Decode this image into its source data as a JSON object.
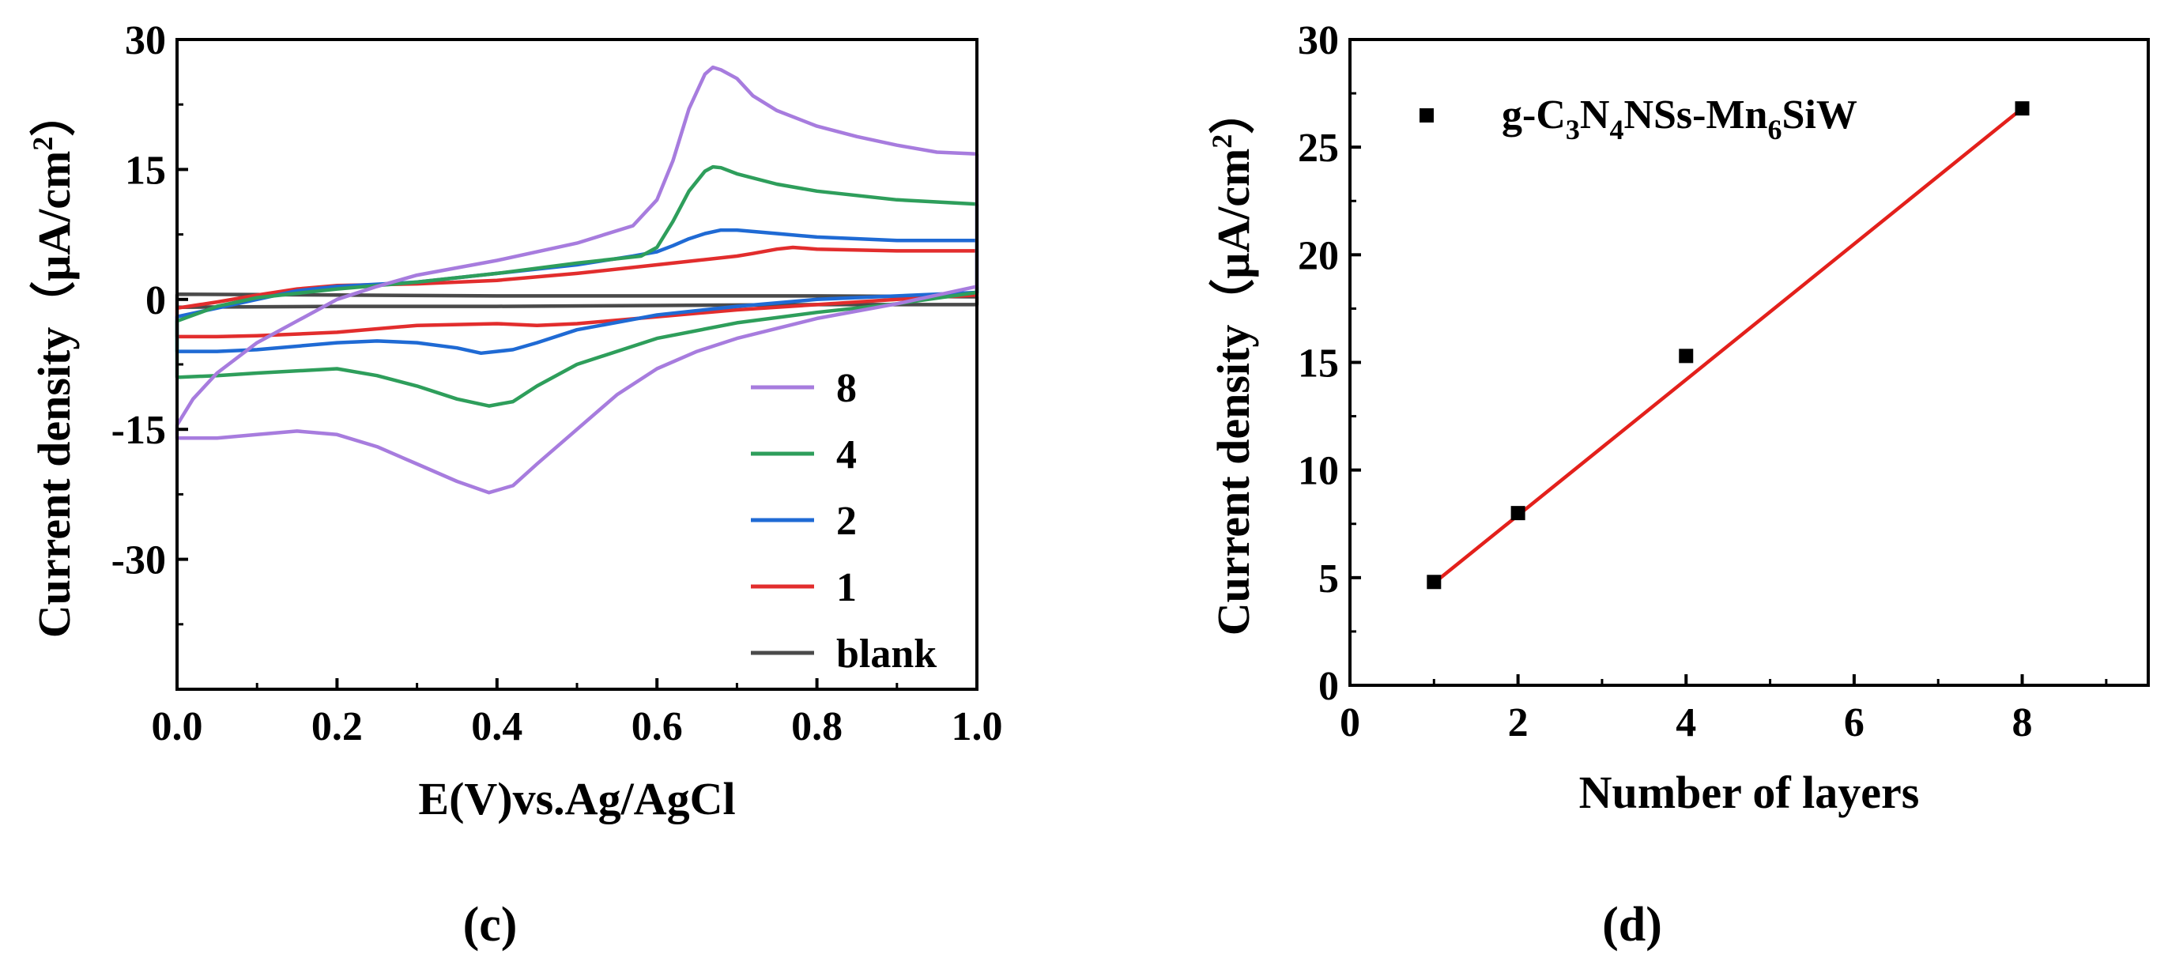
{
  "panels": {
    "c": "(c)",
    "d": "(d)"
  },
  "chart_data": [
    {
      "id": "c",
      "type": "line",
      "title": "",
      "xlabel": "E(V)vs.Ag/AgCl",
      "ylabel": "Current density（μA/cm",
      "ylabel_sup": "2",
      "ylabel_close": "）",
      "xlim": [
        0.0,
        1.0
      ],
      "ylim": [
        -45,
        30
      ],
      "xticks": [
        0.0,
        0.2,
        0.4,
        0.6,
        0.8,
        1.0
      ],
      "xtick_labels": [
        "0.0",
        "0.2",
        "0.4",
        "0.6",
        "0.8",
        "1.0"
      ],
      "yticks": [
        -30,
        -15,
        0,
        15,
        30
      ],
      "ytick_labels": [
        "-30",
        "-15",
        "0",
        "15",
        "30"
      ],
      "legend_position": "bottom-right",
      "series": [
        {
          "name": "8",
          "color": "#a77cde",
          "x": [
            1.0,
            0.95,
            0.9,
            0.85,
            0.8,
            0.75,
            0.72,
            0.7,
            0.68,
            0.67,
            0.66,
            0.64,
            0.62,
            0.6,
            0.57,
            0.5,
            0.4,
            0.3,
            0.25,
            0.2,
            0.15,
            0.1,
            0.05,
            0.02,
            0.0,
            0.0,
            0.05,
            0.1,
            0.15,
            0.2,
            0.25,
            0.3,
            0.35,
            0.39,
            0.42,
            0.45,
            0.5,
            0.55,
            0.6,
            0.65,
            0.7,
            0.8,
            0.9,
            1.0,
            1.0
          ],
          "y": [
            16.8,
            17.0,
            17.8,
            18.8,
            20.0,
            21.8,
            23.5,
            25.5,
            26.5,
            26.8,
            26.0,
            22.0,
            16.0,
            11.5,
            8.5,
            6.5,
            4.5,
            2.8,
            1.5,
            0.0,
            -2.5,
            -5.0,
            -8.5,
            -11.5,
            -14.5,
            -16.0,
            -16.0,
            -15.6,
            -15.2,
            -15.6,
            -17.0,
            -19.0,
            -21.0,
            -22.3,
            -21.5,
            -19.0,
            -15.0,
            -11.0,
            -8.0,
            -6.0,
            -4.5,
            -2.2,
            -0.5,
            1.5,
            16.8
          ]
        },
        {
          "name": "4",
          "color": "#2e9e5b",
          "x": [
            1.0,
            0.9,
            0.8,
            0.75,
            0.7,
            0.68,
            0.67,
            0.66,
            0.64,
            0.62,
            0.6,
            0.58,
            0.5,
            0.4,
            0.3,
            0.2,
            0.1,
            0.05,
            0.0,
            0.0,
            0.05,
            0.1,
            0.2,
            0.25,
            0.3,
            0.35,
            0.39,
            0.42,
            0.45,
            0.5,
            0.6,
            0.7,
            0.8,
            0.9,
            1.0,
            1.0
          ],
          "y": [
            11.0,
            11.5,
            12.5,
            13.3,
            14.5,
            15.2,
            15.3,
            14.8,
            12.5,
            9.0,
            6.0,
            5.0,
            4.2,
            3.0,
            2.0,
            1.2,
            0.2,
            -0.8,
            -2.5,
            -9.0,
            -8.8,
            -8.5,
            -8.0,
            -8.8,
            -10.0,
            -11.5,
            -12.3,
            -11.8,
            -10.0,
            -7.5,
            -4.5,
            -2.7,
            -1.5,
            -0.5,
            0.8,
            11.0
          ]
        },
        {
          "name": "2",
          "color": "#1f6ad4",
          "x": [
            1.0,
            0.9,
            0.8,
            0.75,
            0.7,
            0.68,
            0.66,
            0.64,
            0.62,
            0.6,
            0.57,
            0.5,
            0.4,
            0.3,
            0.2,
            0.15,
            0.1,
            0.05,
            0.0,
            0.0,
            0.05,
            0.1,
            0.2,
            0.25,
            0.3,
            0.35,
            0.38,
            0.42,
            0.45,
            0.5,
            0.6,
            0.7,
            0.8,
            0.9,
            1.0,
            1.0
          ],
          "y": [
            6.8,
            6.8,
            7.2,
            7.6,
            8.0,
            8.0,
            7.6,
            7.0,
            6.2,
            5.5,
            5.0,
            4.0,
            3.0,
            2.0,
            1.5,
            1.0,
            0.0,
            -1.0,
            -2.0,
            -6.0,
            -6.0,
            -5.8,
            -5.0,
            -4.8,
            -5.0,
            -5.6,
            -6.2,
            -5.8,
            -5.0,
            -3.5,
            -1.8,
            -0.8,
            0.0,
            0.4,
            0.8,
            6.8
          ]
        },
        {
          "name": "1",
          "color": "#e22d2d",
          "x": [
            1.0,
            0.9,
            0.8,
            0.77,
            0.75,
            0.72,
            0.7,
            0.65,
            0.6,
            0.5,
            0.4,
            0.3,
            0.2,
            0.15,
            0.1,
            0.05,
            0.0,
            0.0,
            0.05,
            0.1,
            0.2,
            0.3,
            0.4,
            0.45,
            0.5,
            0.6,
            0.7,
            0.8,
            0.9,
            1.0,
            1.0
          ],
          "y": [
            5.6,
            5.6,
            5.8,
            6.0,
            5.8,
            5.3,
            5.0,
            4.5,
            4.0,
            3.0,
            2.2,
            1.8,
            1.6,
            1.2,
            0.5,
            -0.3,
            -1.0,
            -4.3,
            -4.3,
            -4.2,
            -3.8,
            -3.0,
            -2.8,
            -3.0,
            -2.8,
            -2.0,
            -1.2,
            -0.6,
            0.0,
            0.5,
            5.6
          ]
        },
        {
          "name": "blank",
          "color": "#4a4a4a",
          "x": [
            0.0,
            0.2,
            0.4,
            0.6,
            0.8,
            1.0,
            1.0,
            0.8,
            0.6,
            0.4,
            0.2,
            0.0,
            0.0
          ],
          "y": [
            0.6,
            0.5,
            0.4,
            0.4,
            0.4,
            0.3,
            -0.6,
            -0.6,
            -0.7,
            -0.8,
            -0.8,
            -0.9,
            0.6
          ]
        }
      ]
    },
    {
      "id": "d",
      "type": "scatter",
      "title": "",
      "xlabel": "Number of  layers",
      "ylabel": "Current density（μA/cm",
      "ylabel_sup": "2",
      "ylabel_close": "）",
      "xlim": [
        0,
        9.5
      ],
      "ylim": [
        0,
        30
      ],
      "xticks": [
        0,
        2,
        4,
        6,
        8
      ],
      "xtick_labels": [
        "0",
        "2",
        "4",
        "6",
        "8"
      ],
      "yticks": [
        0,
        5,
        10,
        15,
        20,
        25,
        30
      ],
      "ytick_labels": [
        "0",
        "5",
        "10",
        "15",
        "20",
        "25",
        "30"
      ],
      "legend": {
        "position": "top-left",
        "parts": [
          "g-C",
          "3",
          "N",
          "4",
          "NSs-Mn",
          "6",
          "SiW"
        ]
      },
      "series": [
        {
          "name": "g-C3N4NSs-Mn6SiW",
          "marker": "square",
          "color": "#000000",
          "x": [
            1,
            2,
            4,
            8
          ],
          "y": [
            4.8,
            8.0,
            15.3,
            26.8
          ]
        }
      ],
      "fit": {
        "color": "#e3201b",
        "x": [
          1,
          8
        ],
        "y": [
          4.75,
          26.8
        ]
      }
    }
  ]
}
